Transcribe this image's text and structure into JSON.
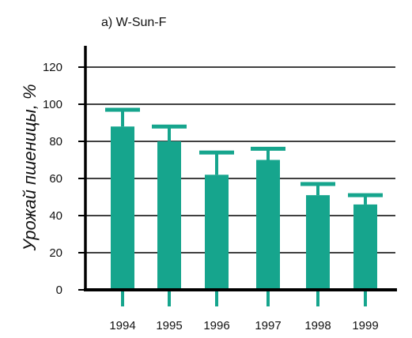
{
  "chart_data": {
    "type": "bar",
    "title": "a) W-Sun-F",
    "ylabel": "Урожай пшеницы, %",
    "xlabel": "",
    "categories": [
      "1994",
      "1995",
      "1996",
      "1997",
      "1998",
      "1999"
    ],
    "values": [
      88,
      80,
      62,
      70,
      51,
      46
    ],
    "error_upper": [
      97,
      88,
      74,
      76,
      57,
      51
    ],
    "ylim": [
      0,
      120
    ],
    "yticks": [
      0,
      20,
      40,
      60,
      80,
      100,
      120
    ],
    "grid": true,
    "bar_color": "#16a58d"
  }
}
